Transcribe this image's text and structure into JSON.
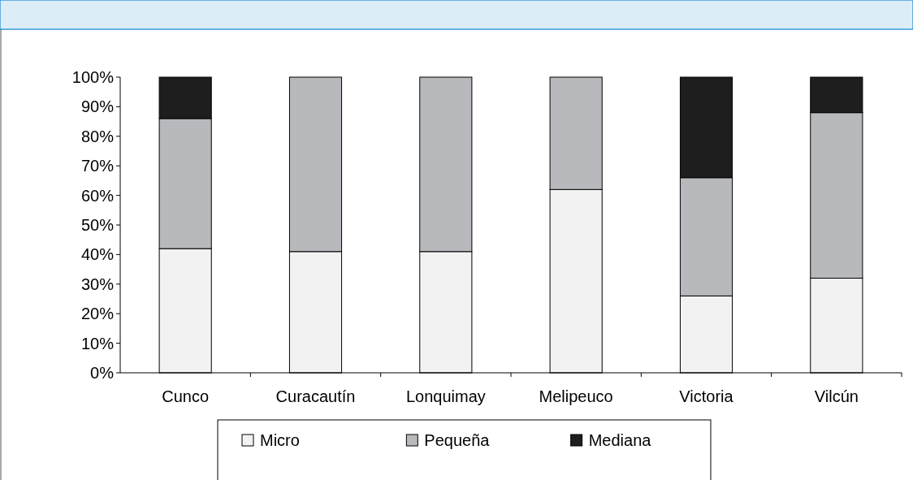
{
  "chart_data": {
    "type": "bar",
    "stacked": true,
    "categories": [
      "Cunco",
      "Curacautín",
      "Lonquimay",
      "Melipeuco",
      "Victoria",
      "Vilcún"
    ],
    "series": [
      {
        "name": "Micro",
        "color": "#f2f2f2",
        "values": [
          42,
          41,
          41,
          62,
          26,
          32
        ]
      },
      {
        "name": "Pequeña",
        "color": "#b8b9bd",
        "values": [
          44,
          59,
          59,
          38,
          40,
          56
        ]
      },
      {
        "name": "Mediana",
        "color": "#1e1e1e",
        "values": [
          14,
          0,
          0,
          0,
          34,
          12
        ]
      }
    ],
    "ylim": [
      0,
      100
    ],
    "yticks": [
      {
        "value": 0,
        "label": "0%"
      },
      {
        "value": 10,
        "label": "10%"
      },
      {
        "value": 20,
        "label": "20%"
      },
      {
        "value": 30,
        "label": "30%"
      },
      {
        "value": 40,
        "label": "40%"
      },
      {
        "value": 50,
        "label": "50%"
      },
      {
        "value": 60,
        "label": "60%"
      },
      {
        "value": 70,
        "label": "70%"
      },
      {
        "value": 80,
        "label": "80%"
      },
      {
        "value": 90,
        "label": "90%"
      },
      {
        "value": 100,
        "label": "100%"
      }
    ],
    "grid": false,
    "legend": "bottom"
  }
}
